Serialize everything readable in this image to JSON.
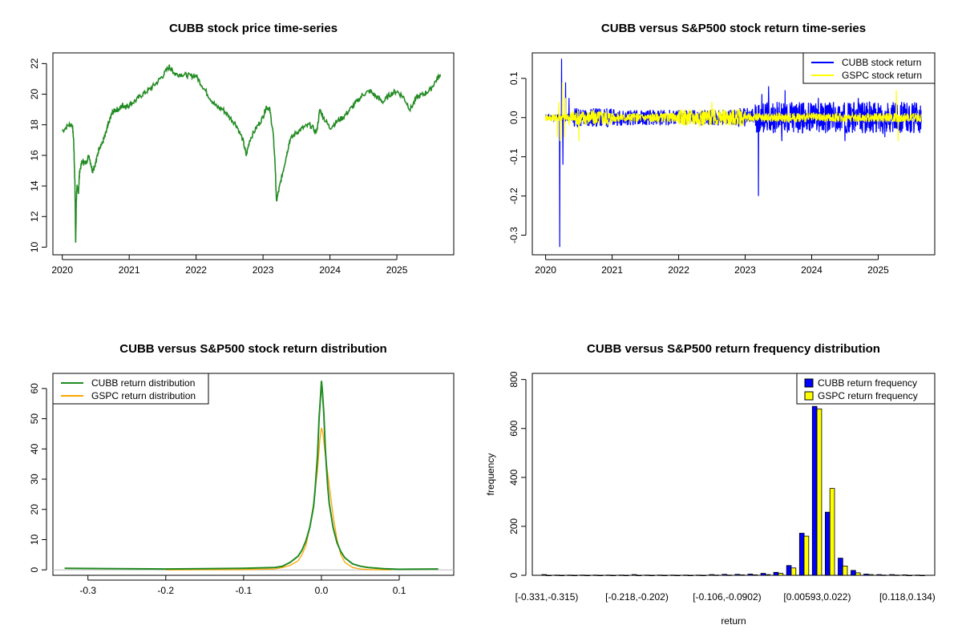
{
  "chart_data": [
    {
      "id": "p1",
      "type": "line",
      "title": "CUBB stock price time-series",
      "xlabel": "",
      "ylabel": "",
      "xlim": [
        2019.86,
        2025.85
      ],
      "ylim": [
        9.5,
        22.7
      ],
      "xticks": [
        2020,
        2021,
        2022,
        2023,
        2024,
        2025
      ],
      "xtick_labels": [
        "2020",
        "2021",
        "2022",
        "2023",
        "2024",
        "2025"
      ],
      "yticks": [
        10,
        12,
        14,
        16,
        18,
        20,
        22
      ],
      "ytick_labels": [
        "10",
        "12",
        "14",
        "16",
        "18",
        "20",
        "22"
      ],
      "grid": false,
      "series": [
        {
          "color": "#228B22",
          "x": [
            2020.0,
            2020.1,
            2020.15,
            2020.17,
            2020.19,
            2020.2,
            2020.21,
            2020.22,
            2020.24,
            2020.26,
            2020.3,
            2020.35,
            2020.4,
            2020.45,
            2020.5,
            2020.55,
            2020.6,
            2020.65,
            2020.7,
            2020.75,
            2020.8,
            2020.85,
            2020.9,
            2020.95,
            2021.0,
            2021.1,
            2021.2,
            2021.3,
            2021.4,
            2021.5,
            2021.6,
            2021.65,
            2021.7,
            2021.8,
            2021.9,
            2022.0,
            2022.1,
            2022.2,
            2022.3,
            2022.4,
            2022.5,
            2022.6,
            2022.7,
            2022.75,
            2022.8,
            2022.9,
            2023.0,
            2023.05,
            2023.1,
            2023.15,
            2023.18,
            2023.2,
            2023.25,
            2023.3,
            2023.35,
            2023.4,
            2023.5,
            2023.6,
            2023.7,
            2023.8,
            2023.85,
            2023.9,
            2024.0,
            2024.1,
            2024.2,
            2024.3,
            2024.4,
            2024.5,
            2024.6,
            2024.7,
            2024.8,
            2024.9,
            2025.0,
            2025.1,
            2025.2,
            2025.3,
            2025.4,
            2025.5,
            2025.6,
            2025.65
          ],
          "y": [
            17.6,
            18.0,
            18.0,
            17.0,
            14.0,
            10.2,
            13.0,
            14.0,
            13.5,
            15.0,
            15.6,
            15.5,
            16.0,
            15.0,
            15.5,
            16.5,
            16.8,
            17.4,
            18.2,
            18.8,
            19.0,
            19.0,
            19.3,
            19.2,
            19.3,
            19.6,
            20.0,
            20.3,
            20.7,
            21.2,
            21.8,
            21.5,
            21.3,
            21.3,
            21.2,
            21.2,
            20.5,
            19.8,
            19.2,
            19.0,
            18.5,
            18.0,
            17.0,
            16.0,
            17.0,
            17.8,
            18.5,
            19.2,
            19.0,
            17.5,
            15.5,
            13.0,
            14.0,
            15.0,
            16.0,
            17.0,
            17.5,
            17.8,
            18.0,
            17.5,
            19.0,
            18.5,
            17.8,
            18.2,
            18.5,
            19.0,
            19.5,
            20.0,
            20.2,
            19.8,
            19.5,
            20.0,
            20.2,
            19.8,
            19.0,
            19.8,
            20.0,
            20.3,
            21.0,
            21.3
          ]
        }
      ]
    },
    {
      "id": "p2",
      "type": "line",
      "title": "CUBB versus S&P500 stock return time-series",
      "xlabel": "",
      "ylabel": "",
      "xlim": [
        2019.8,
        2025.85
      ],
      "ylim": [
        -0.35,
        0.165
      ],
      "xticks": [
        2020,
        2021,
        2022,
        2023,
        2024,
        2025
      ],
      "xtick_labels": [
        "2020",
        "2021",
        "2022",
        "2023",
        "2024",
        "2025"
      ],
      "yticks": [
        -0.3,
        -0.2,
        -0.1,
        0.0,
        0.1
      ],
      "ytick_labels": [
        "-0.3",
        "-0.2",
        "-0.1",
        "0.0",
        "0.1"
      ],
      "grid": false,
      "legend": {
        "position": "top-right",
        "entries": [
          {
            "label": "CUBB stock return",
            "color": "#0000FF"
          },
          {
            "label": "GSPC stock return",
            "color": "#FFFF00"
          }
        ]
      },
      "series": [
        {
          "color": "#0000FF",
          "spikes": [
            [
              2020.21,
              -0.33
            ],
            [
              2020.24,
              0.15
            ],
            [
              2020.26,
              -0.12
            ],
            [
              2020.3,
              0.09
            ],
            [
              2020.35,
              0.05
            ],
            [
              2023.2,
              -0.2
            ],
            [
              2023.25,
              0.06
            ],
            [
              2023.35,
              0.08
            ],
            [
              2023.55,
              -0.06
            ],
            [
              2023.6,
              0.07
            ],
            [
              2024.1,
              0.05
            ],
            [
              2024.5,
              -0.06
            ],
            [
              2024.7,
              0.05
            ],
            [
              2025.1,
              -0.05
            ],
            [
              2025.35,
              0.04
            ]
          ],
          "noise": [
            [
              2020.0,
              2020.15,
              0.01
            ],
            [
              2020.4,
              2021.0,
              0.025
            ],
            [
              2021.0,
              2022.9,
              0.02
            ],
            [
              2022.9,
              2023.15,
              0.025
            ],
            [
              2023.15,
              2025.65,
              0.04
            ]
          ]
        },
        {
          "color": "#FFFF00",
          "spikes": [
            [
              2020.18,
              -0.05
            ],
            [
              2020.2,
              0.04
            ],
            [
              2020.22,
              -0.06
            ],
            [
              2020.25,
              0.09
            ],
            [
              2020.28,
              -0.05
            ],
            [
              2020.3,
              0.05
            ],
            [
              2020.5,
              -0.06
            ],
            [
              2022.5,
              0.04
            ],
            [
              2025.27,
              0.07
            ],
            [
              2025.3,
              -0.06
            ]
          ],
          "noise": [
            [
              2020.0,
              2020.15,
              0.01
            ],
            [
              2020.35,
              2021.0,
              0.02
            ],
            [
              2021.0,
              2022.0,
              0.012
            ],
            [
              2022.0,
              2023.0,
              0.022
            ],
            [
              2023.0,
              2025.65,
              0.012
            ]
          ]
        }
      ]
    },
    {
      "id": "p3",
      "type": "line",
      "title": "CUBB versus S&P500 stock return distribution",
      "xlabel": "",
      "ylabel": "",
      "xlim": [
        -0.345,
        0.17
      ],
      "ylim": [
        -1.8,
        65
      ],
      "xticks": [
        -0.3,
        -0.2,
        -0.1,
        0.0,
        0.1
      ],
      "xtick_labels": [
        "-0.3",
        "-0.2",
        "-0.1",
        "0.0",
        "0.1"
      ],
      "yticks": [
        0,
        10,
        20,
        30,
        40,
        50,
        60
      ],
      "ytick_labels": [
        "0",
        "10",
        "20",
        "30",
        "40",
        "50",
        "60"
      ],
      "grid": false,
      "baseline": 0,
      "legend": {
        "position": "top-left",
        "entries": [
          {
            "label": "CUBB return distribution",
            "color": "#228B22"
          },
          {
            "label": "GSPC return distribution",
            "color": "#FFA500"
          }
        ]
      },
      "series": [
        {
          "color": "#228B22",
          "x": [
            -0.33,
            -0.2,
            -0.1,
            -0.06,
            -0.05,
            -0.04,
            -0.03,
            -0.025,
            -0.02,
            -0.015,
            -0.01,
            -0.008,
            -0.005,
            -0.003,
            -0.001,
            0.0,
            0.001,
            0.003,
            0.005,
            0.008,
            0.01,
            0.015,
            0.02,
            0.025,
            0.03,
            0.04,
            0.05,
            0.06,
            0.08,
            0.1,
            0.15
          ],
          "y": [
            0.5,
            0.3,
            0.5,
            0.8,
            1.2,
            2.5,
            4.5,
            6.5,
            9.5,
            14.0,
            21.0,
            27.0,
            38.0,
            50.0,
            58.0,
            62.5,
            60.0,
            52.0,
            40.0,
            28.0,
            22.0,
            14.0,
            9.0,
            6.0,
            4.0,
            2.0,
            1.2,
            0.8,
            0.4,
            0.2,
            0.3
          ]
        },
        {
          "color": "#FFA500",
          "x": [
            -0.2,
            -0.1,
            -0.06,
            -0.05,
            -0.04,
            -0.03,
            -0.025,
            -0.02,
            -0.015,
            -0.01,
            -0.005,
            -0.002,
            0.0,
            0.002,
            0.005,
            0.01,
            0.015,
            0.02,
            0.025,
            0.03,
            0.04,
            0.05,
            0.06,
            0.09
          ],
          "y": [
            0.0,
            0.1,
            0.3,
            0.8,
            1.5,
            3.0,
            5.0,
            8.0,
            14.0,
            22.0,
            33.0,
            43.0,
            47.0,
            45.0,
            38.0,
            28.0,
            18.0,
            10.0,
            5.0,
            2.5,
            0.8,
            0.3,
            0.1,
            0.0
          ]
        }
      ]
    },
    {
      "id": "p4",
      "type": "bar",
      "title": "CUBB versus S&P500 return frequency distribution",
      "xlabel": "return",
      "ylabel": "frequency",
      "ylim": [
        0,
        825
      ],
      "yticks": [
        0,
        200,
        400,
        600,
        800
      ],
      "ytick_labels": [
        "0",
        "200",
        "400",
        "600",
        "800"
      ],
      "grid": false,
      "categories": [
        "[-0.331,-0.315)",
        "",
        "",
        "",
        "",
        "",
        "",
        "[-0.218,-0.202)",
        "",
        "",
        "",
        "",
        "",
        "",
        "[-0.106,-0.0902)",
        "",
        "",
        "",
        "",
        "",
        "",
        "[0.00593,0.022)",
        "",
        "",
        "",
        "",
        "",
        "",
        "[0.118,0.134)",
        ""
      ],
      "label_indices": [
        0,
        7,
        14,
        21,
        28
      ],
      "legend": {
        "position": "top-right",
        "entries": [
          {
            "label": "CUBB return frequency",
            "color": "#0000FF"
          },
          {
            "label": "GSPC return frequency",
            "color": "#FFFF00"
          }
        ]
      },
      "series": [
        {
          "name": "CUBB return frequency",
          "color": "#0000FF",
          "values": [
            3,
            1,
            1,
            1,
            1,
            1,
            1,
            3,
            1,
            1,
            1,
            1,
            1,
            3,
            4,
            4,
            5,
            8,
            12,
            40,
            172,
            690,
            258,
            70,
            20,
            5,
            3,
            3,
            2,
            1
          ]
        },
        {
          "name": "GSPC return frequency",
          "color": "#FFFF00",
          "values": [
            0,
            0,
            0,
            0,
            0,
            0,
            0,
            0,
            0,
            0,
            0,
            0,
            0,
            1,
            1,
            2,
            2,
            3,
            8,
            30,
            160,
            680,
            355,
            38,
            10,
            3,
            1,
            1,
            0,
            0
          ]
        }
      ]
    }
  ]
}
